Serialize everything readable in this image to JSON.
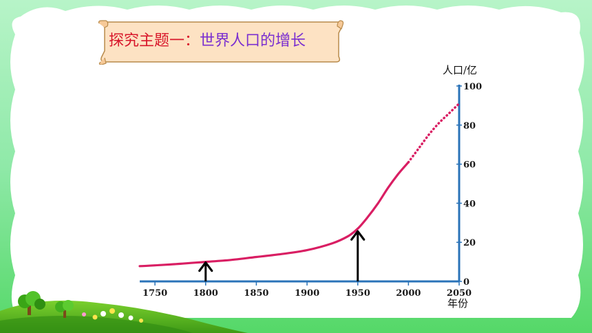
{
  "slide": {
    "title_part1": "探究主题一：",
    "title_part2": "世界人口的增长",
    "colors": {
      "background_top": "#9ff0b6",
      "background_bottom": "#4fd95f",
      "banner_fill": "#fde2c3",
      "banner_border": "#b88a4a",
      "title_red": "#d8162a",
      "title_purple": "#7a2fd0",
      "curve": "#d91e63",
      "axis": "#2a73b8"
    }
  },
  "chart_data": {
    "type": "line",
    "xlabel": "年份",
    "ylabel": "人口/亿",
    "xlim": [
      1735,
      2050
    ],
    "ylim": [
      0,
      100
    ],
    "x_ticks": [
      "1750",
      "1800",
      "1850",
      "1900",
      "1950",
      "2000",
      "2050"
    ],
    "y_ticks": [
      "0",
      "20",
      "40",
      "60",
      "80",
      "100"
    ],
    "series": [
      {
        "style": "solid",
        "x": [
          1735,
          1750,
          1775,
          1800,
          1825,
          1850,
          1875,
          1900,
          1925,
          1940,
          1950,
          1960,
          1970,
          1980,
          1990,
          2000
        ],
        "y": [
          7.8,
          8.2,
          9,
          10,
          11,
          12.5,
          14,
          16,
          19.5,
          23,
          27,
          33,
          40,
          48,
          55,
          61
        ]
      },
      {
        "style": "dotted",
        "x": [
          2000,
          2010,
          2020,
          2030,
          2040,
          2050
        ],
        "y": [
          61,
          68,
          75,
          81,
          86,
          91
        ]
      }
    ],
    "annotations": [
      {
        "type": "arrow",
        "x": 1800,
        "y": 10
      },
      {
        "type": "arrow",
        "x": 1950,
        "y": 26
      }
    ]
  }
}
